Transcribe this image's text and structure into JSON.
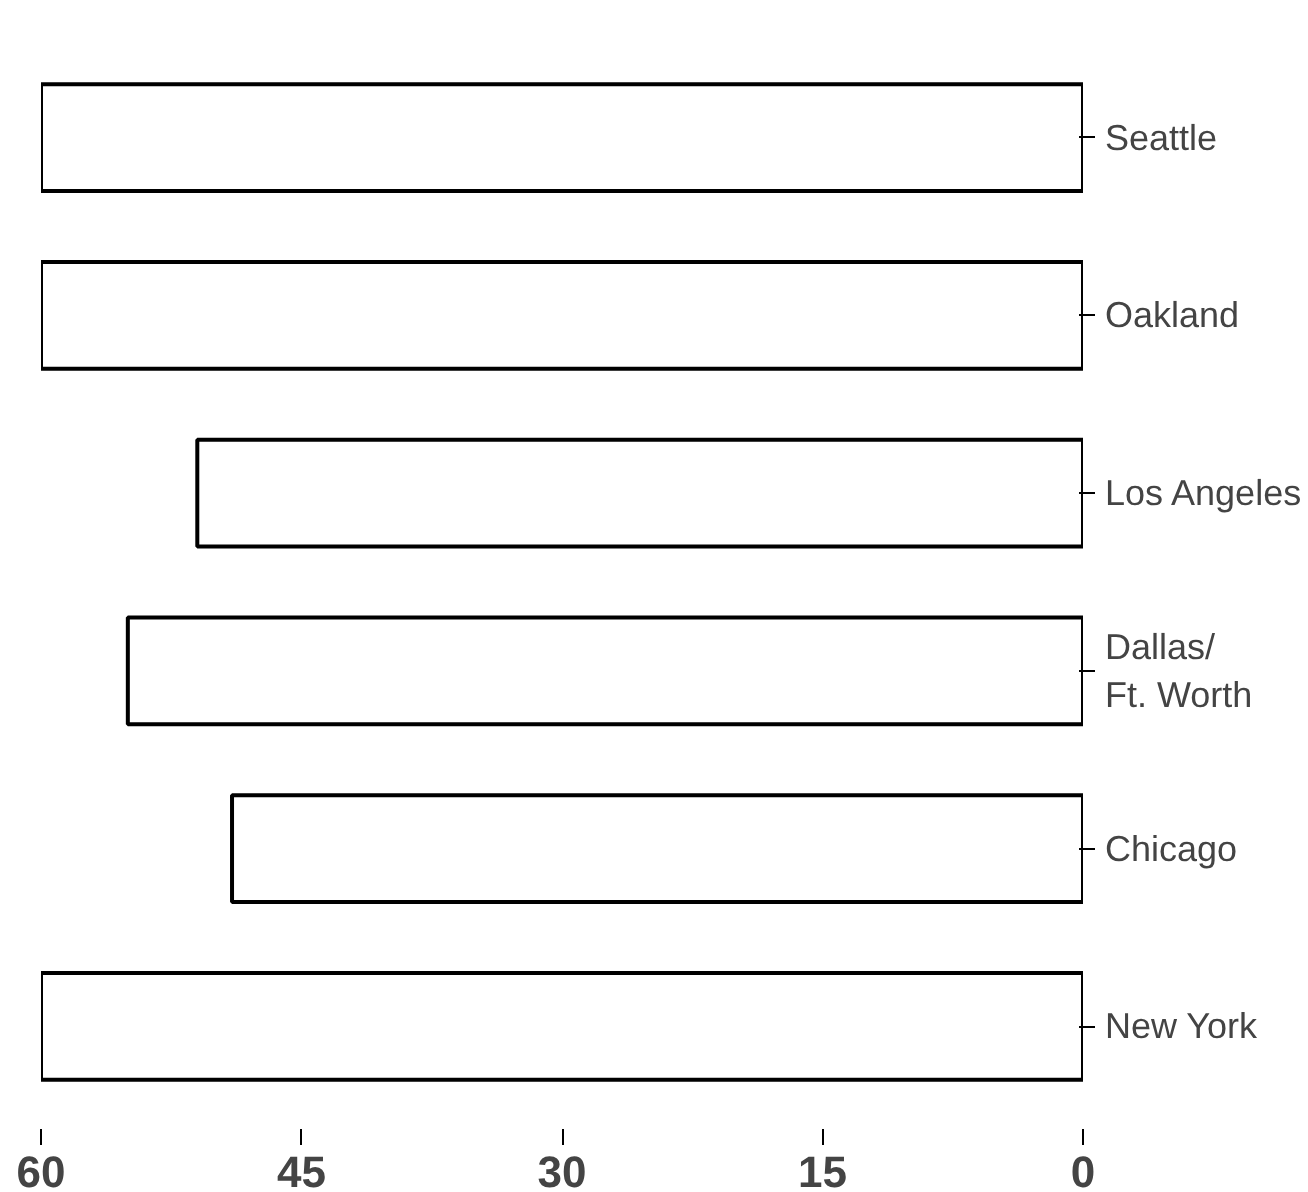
{
  "chart_data": {
    "type": "bar",
    "orientation": "horizontal",
    "categories": [
      "Seattle",
      "Oakland",
      "Los Angeles",
      "Dallas/\nFt. Worth",
      "Chicago",
      "New York"
    ],
    "values": [
      60,
      60,
      51,
      55,
      49,
      60
    ],
    "color": "#ffffff",
    "xlim": [
      60,
      0
    ],
    "xticks": [
      60,
      45,
      30,
      15,
      0
    ],
    "grid": false
  }
}
